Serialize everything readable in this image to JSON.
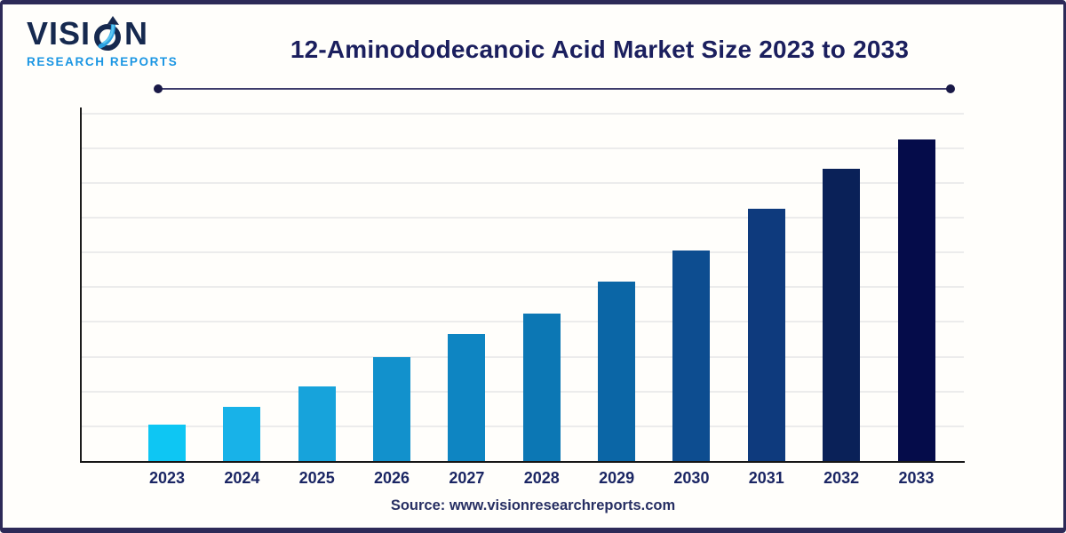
{
  "header": {
    "logo": {
      "word_prefix": "VISI",
      "word_suffix": "N",
      "subtitle": "RESEARCH REPORTS"
    },
    "title": "12-Aminododecanoic Acid Market Size 2023 to 2033"
  },
  "footer": {
    "source": "Source: www.visionresearchreports.com"
  },
  "colors": {
    "frame_border": "#2d2a58",
    "title_text": "#1b1f5e",
    "logo_primary": "#16294f",
    "logo_accent_light": "#5bc6f2",
    "logo_accent_mid": "#2a9fe0",
    "logo_subtitle": "#1b96e3",
    "axis": "#1c1c1c",
    "gridline": "#ececec",
    "x_label": "#1b2664",
    "divider_line": "#3d3b6b",
    "divider_dot": "#191947",
    "source_text": "#272f63"
  },
  "chart_data": {
    "type": "bar",
    "title": "12-Aminododecanoic Acid Market Size 2023 to 2033",
    "categories": [
      "2023",
      "2024",
      "2025",
      "2026",
      "2027",
      "2028",
      "2029",
      "2030",
      "2031",
      "2032",
      "2033"
    ],
    "values": [
      1.05,
      1.55,
      2.15,
      3.0,
      3.65,
      4.25,
      5.15,
      6.05,
      7.25,
      8.4,
      9.25
    ],
    "value_note": "y-axis has no numeric tick labels; values estimated in gridline units from pixel heights",
    "ylim": [
      0,
      10
    ],
    "gridline_interval": 1,
    "gridline_count": 10,
    "grid": "horizontal",
    "legend": "none",
    "xlabel": "",
    "ylabel": "",
    "bar_colors": [
      "#0ec6f3",
      "#18b2e8",
      "#17a3db",
      "#1291cc",
      "#0e85c2",
      "#0c77b4",
      "#0b66a6",
      "#0d4d90",
      "#0e3a7d",
      "#0a2158",
      "#050c4a"
    ]
  }
}
